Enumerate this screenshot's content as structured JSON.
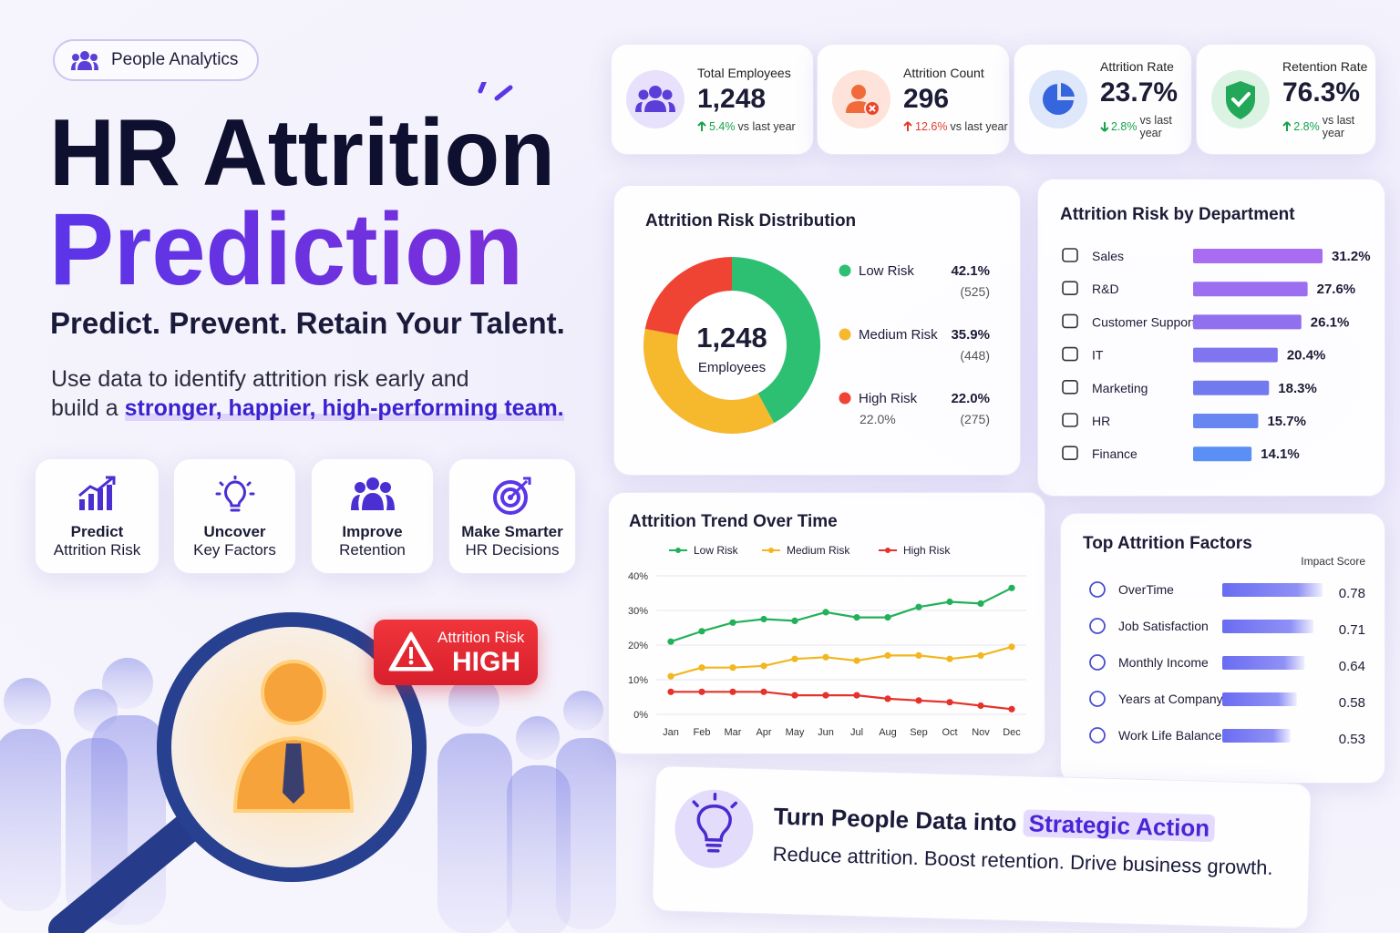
{
  "header": {
    "badge": "People Analytics",
    "title_line1": "HR Attrition",
    "title_line2": "Prediction",
    "tagline": "Predict. Prevent. Retain Your Talent.",
    "description_line1": "Use data to identify attrition risk early and",
    "description_line2": "build a",
    "highlight": "stronger, happier, high-performing team."
  },
  "features": [
    {
      "title": "Predict",
      "subtitle": "Attrition Risk"
    },
    {
      "title": "Uncover",
      "subtitle": "Key Factors"
    },
    {
      "title": "Improve",
      "subtitle": "Retention"
    },
    {
      "title": "Make Smarter",
      "subtitle": "HR Decisions"
    }
  ],
  "alert": {
    "label": "Attrition Risk",
    "level": "HIGH"
  },
  "kpis": [
    {
      "label": "Total Employees",
      "value": "1,248",
      "change": "5.4%",
      "note": "vs last year",
      "direction": "up",
      "color": "#16a34a"
    },
    {
      "label": "Attrition Count",
      "value": "296",
      "change": "12.6%",
      "note": "vs last year",
      "direction": "up",
      "color": "#e23b2e"
    },
    {
      "label": "Attrition Rate",
      "value": "23.7%",
      "change": "2.8%",
      "note": "vs last year",
      "direction": "down",
      "color": "#16a34a"
    },
    {
      "label": "Retention Rate",
      "value": "76.3%",
      "change": "2.8%",
      "note": "vs last year",
      "direction": "up",
      "color": "#16a34a"
    }
  ],
  "chart_data": [
    {
      "type": "donut",
      "title": "Attrition Risk Distribution",
      "center_value": "1,248",
      "center_label": "Employees",
      "categories": [
        "Low Risk",
        "Medium Risk",
        "High Risk"
      ],
      "values": [
        42.1,
        35.9,
        22.0
      ],
      "value_labels": [
        "42.1%",
        "35.9%",
        "22.0%"
      ],
      "counts": [
        "(525)",
        "(448)",
        "(275)"
      ],
      "annotation": "22.0%",
      "colors": [
        "#2dbf72",
        "#f6b82c",
        "#ef4433"
      ]
    },
    {
      "type": "hbar",
      "title": "Attrition Risk by Department",
      "categories": [
        "Sales",
        "R&D",
        "Customer Support",
        "IT",
        "Marketing",
        "HR",
        "Finance"
      ],
      "values": [
        31.2,
        27.6,
        26.1,
        20.4,
        18.3,
        15.7,
        14.1
      ],
      "value_labels": [
        "31.2%",
        "27.6%",
        "26.1%",
        "20.4%",
        "18.3%",
        "15.7%",
        "14.1%"
      ],
      "colors": [
        "#a86cf0",
        "#9c6ef0",
        "#9170ef",
        "#8074ef",
        "#727aef",
        "#6886f2",
        "#5a90f5"
      ]
    },
    {
      "type": "line",
      "title": "Attrition Trend Over Time",
      "categories": [
        "Jan",
        "Feb",
        "Mar",
        "Apr",
        "May",
        "Jun",
        "Jul",
        "Aug",
        "Sep",
        "Oct",
        "Nov",
        "Dec"
      ],
      "series": [
        {
          "name": "Low Risk",
          "color": "#22b159",
          "values": [
            21,
            24,
            26.5,
            27.5,
            27,
            29.5,
            28,
            28,
            31,
            32.5,
            32,
            36.5
          ]
        },
        {
          "name": "Medium Risk",
          "color": "#f2b61e",
          "values": [
            11,
            13.5,
            13.5,
            14,
            16,
            16.5,
            15.5,
            17,
            17,
            16,
            17,
            19.5
          ]
        },
        {
          "name": "High Risk",
          "color": "#e5322a",
          "values": [
            6.5,
            6.5,
            6.5,
            6.5,
            5.5,
            5.5,
            5.5,
            4.5,
            4,
            3.5,
            2.5,
            1.5
          ]
        }
      ],
      "ylim": [
        0,
        40
      ],
      "yticks": [
        {
          "value": 0,
          "label": "0%"
        },
        {
          "value": 10,
          "label": "10%"
        },
        {
          "value": 20,
          "label": "20%"
        },
        {
          "value": 30,
          "label": "30%"
        },
        {
          "value": 40,
          "label": "40%"
        }
      ],
      "grid": true
    },
    {
      "type": "hbar-fade",
      "title": "Top Attrition Factors",
      "axis_label": "Impact Score",
      "categories": [
        "OverTime",
        "Job Satisfaction",
        "Monthly Income",
        "Years at Company",
        "Work Life Balance"
      ],
      "values": [
        0.78,
        0.71,
        0.64,
        0.58,
        0.53
      ],
      "color": "#6a6cf2"
    }
  ],
  "cta": {
    "title": "Turn People Data into",
    "highlight": "Strategic Action",
    "subtitle": "Reduce attrition. Boost retention. Drive business growth."
  }
}
